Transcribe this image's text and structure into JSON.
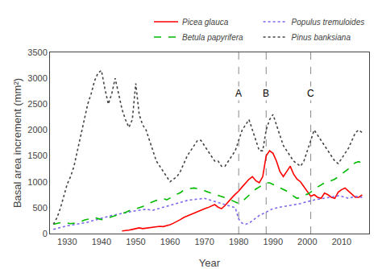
{
  "chart_data": {
    "type": "line",
    "xlabel": "Year",
    "ylabel": "Basal area increment (mm²)",
    "xlim": [
      1925,
      2018
    ],
    "ylim": [
      0,
      3500
    ],
    "xticks": [
      1930,
      1940,
      1950,
      1960,
      1970,
      1980,
      1990,
      2000,
      2010
    ],
    "yticks": [
      0,
      500,
      1000,
      1500,
      2000,
      2500,
      3000,
      3500
    ],
    "grid": false,
    "legend": "upper right",
    "vlines": [
      {
        "x": 1980,
        "label": "A",
        "label_y": 2560
      },
      {
        "x": 1988,
        "label": "B",
        "label_y": 2560
      },
      {
        "x": 2001,
        "label": "C",
        "label_y": 2560
      }
    ],
    "series": [
      {
        "name": "Picea glauca",
        "color": "#ff0000",
        "line_style": "solid",
        "x": [
          1946,
          1947,
          1948,
          1949,
          1950,
          1951,
          1952,
          1953,
          1954,
          1955,
          1956,
          1957,
          1958,
          1959,
          1960,
          1961,
          1962,
          1963,
          1964,
          1965,
          1966,
          1967,
          1968,
          1969,
          1970,
          1971,
          1972,
          1973,
          1974,
          1975,
          1976,
          1977,
          1978,
          1979,
          1980,
          1981,
          1982,
          1983,
          1984,
          1985,
          1986,
          1987,
          1988,
          1989,
          1990,
          1991,
          1992,
          1993,
          1994,
          1995,
          1996,
          1997,
          1998,
          1999,
          2000,
          2001,
          2002,
          2003,
          2004,
          2005,
          2006,
          2007,
          2008,
          2009,
          2010,
          2011,
          2012,
          2013,
          2014,
          2015,
          2016
        ],
        "values": [
          50,
          55,
          65,
          80,
          100,
          110,
          95,
          105,
          115,
          120,
          130,
          140,
          135,
          150,
          170,
          200,
          230,
          270,
          310,
          340,
          360,
          390,
          420,
          450,
          480,
          500,
          530,
          560,
          510,
          480,
          540,
          620,
          690,
          760,
          820,
          900,
          980,
          1050,
          1100,
          1020,
          980,
          1100,
          1500,
          1600,
          1550,
          1400,
          1200,
          1100,
          1200,
          1300,
          1150,
          1050,
          1000,
          900,
          800,
          720,
          750,
          700,
          680,
          780,
          750,
          700,
          680,
          800,
          850,
          880,
          820,
          760,
          700,
          700,
          750
        ]
      },
      {
        "name": "Populus tremuloides",
        "color": "#7b68ee",
        "line_style": "dotted",
        "x": [
          1926,
          1927,
          1928,
          1929,
          1930,
          1931,
          1932,
          1933,
          1934,
          1935,
          1936,
          1937,
          1938,
          1939,
          1940,
          1941,
          1942,
          1943,
          1944,
          1945,
          1946,
          1947,
          1948,
          1949,
          1950,
          1951,
          1952,
          1953,
          1954,
          1955,
          1956,
          1957,
          1958,
          1959,
          1960,
          1961,
          1962,
          1963,
          1964,
          1965,
          1966,
          1967,
          1968,
          1969,
          1970,
          1971,
          1972,
          1973,
          1974,
          1975,
          1976,
          1977,
          1978,
          1979,
          1980,
          1981,
          1982,
          1983,
          1984,
          1985,
          1986,
          1987,
          1988,
          1989,
          1990,
          1991,
          1992,
          1993,
          1994,
          1995,
          1996,
          1997,
          1998,
          1999,
          2000,
          2001,
          2002,
          2003,
          2004,
          2005,
          2006,
          2007,
          2008,
          2009,
          2010,
          2011,
          2012,
          2013,
          2014,
          2015,
          2016
        ],
        "values": [
          80,
          100,
          120,
          140,
          150,
          160,
          170,
          180,
          190,
          200,
          220,
          240,
          260,
          280,
          300,
          320,
          340,
          350,
          360,
          380,
          390,
          400,
          420,
          430,
          440,
          450,
          460,
          470,
          460,
          450,
          470,
          490,
          510,
          530,
          550,
          570,
          590,
          610,
          630,
          640,
          650,
          660,
          670,
          680,
          680,
          660,
          640,
          620,
          600,
          580,
          560,
          540,
          520,
          500,
          280,
          200,
          180,
          200,
          250,
          300,
          350,
          380,
          420,
          450,
          480,
          500,
          510,
          520,
          530,
          550,
          560,
          570,
          580,
          600,
          620,
          640,
          650,
          660,
          670,
          680,
          700,
          710,
          720,
          730,
          720,
          700,
          680,
          700,
          720,
          710,
          700
        ]
      },
      {
        "name": "Betula papyrifera",
        "color": "#00bb00",
        "line_style": "dashed",
        "x": [
          1926,
          1927,
          1928,
          1929,
          1930,
          1931,
          1932,
          1933,
          1934,
          1935,
          1936,
          1937,
          1938,
          1939,
          1940,
          1941,
          1942,
          1943,
          1944,
          1945,
          1946,
          1947,
          1948,
          1949,
          1950,
          1951,
          1952,
          1953,
          1954,
          1955,
          1956,
          1957,
          1958,
          1959,
          1960,
          1961,
          1962,
          1963,
          1964,
          1965,
          1966,
          1967,
          1968,
          1969,
          1970,
          1971,
          1972,
          1973,
          1974,
          1975,
          1976,
          1977,
          1978,
          1979,
          1980,
          1981,
          1982,
          1983,
          1984,
          1985,
          1986,
          1987,
          1988,
          1989,
          1990,
          1991,
          1992,
          1993,
          1994,
          1995,
          1996,
          1997,
          1998,
          1999,
          2000,
          2001,
          2002,
          2003,
          2004,
          2005,
          2006,
          2007,
          2008,
          2009,
          2010,
          2011,
          2012,
          2013,
          2014,
          2015,
          2016
        ],
        "values": [
          180,
          200,
          210,
          220,
          200,
          190,
          200,
          210,
          230,
          260,
          280,
          300,
          310,
          290,
          270,
          280,
          300,
          320,
          340,
          370,
          390,
          410,
          440,
          460,
          480,
          500,
          520,
          560,
          590,
          620,
          640,
          660,
          680,
          650,
          680,
          720,
          760,
          790,
          840,
          860,
          870,
          880,
          870,
          850,
          830,
          800,
          780,
          760,
          740,
          710,
          690,
          670,
          640,
          610,
          580,
          620,
          680,
          730,
          800,
          860,
          900,
          940,
          980,
          980,
          950,
          920,
          880,
          860,
          820,
          780,
          720,
          680,
          700,
          740,
          760,
          800,
          860,
          900,
          940,
          980,
          1000,
          1020,
          1050,
          1100,
          1150,
          1200,
          1250,
          1320,
          1370,
          1390,
          1350
        ]
      },
      {
        "name": "Pinus banksiana",
        "color": "#444444",
        "line_style": "dotted",
        "x": [
          1926,
          1927,
          1928,
          1929,
          1930,
          1931,
          1932,
          1933,
          1934,
          1935,
          1936,
          1937,
          1938,
          1939,
          1940,
          1941,
          1942,
          1943,
          1944,
          1945,
          1946,
          1947,
          1948,
          1949,
          1950,
          1951,
          1952,
          1953,
          1954,
          1955,
          1956,
          1957,
          1958,
          1959,
          1960,
          1961,
          1962,
          1963,
          1964,
          1965,
          1966,
          1967,
          1968,
          1969,
          1970,
          1971,
          1972,
          1973,
          1974,
          1975,
          1976,
          1977,
          1978,
          1979,
          1980,
          1981,
          1982,
          1983,
          1984,
          1985,
          1986,
          1987,
          1988,
          1989,
          1990,
          1991,
          1992,
          1993,
          1994,
          1995,
          1996,
          1997,
          1998,
          1999,
          2000,
          2001,
          2002,
          2003,
          2004,
          2005,
          2006,
          2007,
          2008,
          2009,
          2010,
          2011,
          2012,
          2013,
          2014,
          2015,
          2016
        ],
        "values": [
          180,
          300,
          480,
          700,
          950,
          1100,
          1300,
          1600,
          1900,
          2200,
          2500,
          2700,
          2950,
          3100,
          3150,
          2800,
          2500,
          2700,
          3000,
          2700,
          2400,
          2200,
          2050,
          2200,
          2900,
          2300,
          2100,
          2000,
          1800,
          1600,
          1400,
          1300,
          1200,
          1100,
          1000,
          1050,
          1100,
          1200,
          1350,
          1500,
          1600,
          1700,
          1800,
          1800,
          1700,
          1600,
          1500,
          1400,
          1400,
          1300,
          1300,
          1400,
          1500,
          1600,
          1800,
          2000,
          2100,
          2200,
          2000,
          1800,
          1600,
          1600,
          2000,
          2200,
          2300,
          2100,
          1900,
          1700,
          1600,
          1500,
          1400,
          1350,
          1300,
          1400,
          1600,
          1800,
          2000,
          1900,
          1800,
          1700,
          1600,
          1500,
          1400,
          1350,
          1450,
          1550,
          1650,
          1800,
          1950,
          2000,
          1950
        ]
      }
    ]
  }
}
